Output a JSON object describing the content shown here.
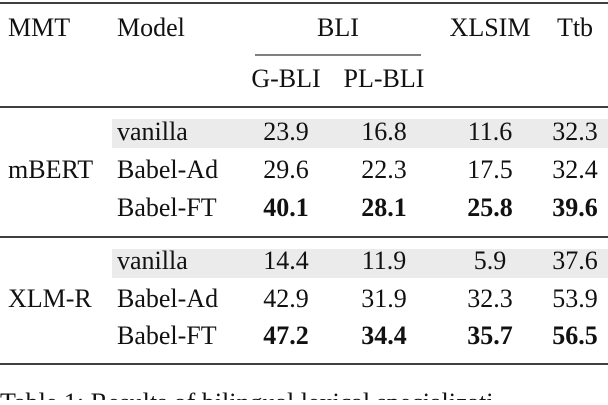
{
  "header": {
    "mmt": "MMT",
    "model": "Model",
    "bli": "BLI",
    "xlsim": "XLSIM",
    "ttb": "Ttb",
    "gbli": "G-BLI",
    "plbli": "PL-BLI"
  },
  "table": {
    "groups": [
      {
        "mmt": "mBERT",
        "rows": [
          [
            "vanilla",
            "23.9",
            "16.8",
            "11.6",
            "32.3"
          ],
          [
            "Babel-Ad",
            "29.6",
            "22.3",
            "17.5",
            "32.4"
          ],
          [
            "Babel-FT",
            "40.1",
            "28.1",
            "25.8",
            "39.6"
          ]
        ]
      },
      {
        "mmt": "XLM-R",
        "rows": [
          [
            "vanilla",
            "14.4",
            "11.9",
            "5.9",
            "37.6"
          ],
          [
            "Babel-Ad",
            "42.9",
            "31.9",
            "32.3",
            "53.9"
          ],
          [
            "Babel-FT",
            "47.2",
            "34.4",
            "35.7",
            "56.5"
          ]
        ]
      }
    ]
  },
  "caption": "Table 1: Results of bilingual lexical specializati"
}
